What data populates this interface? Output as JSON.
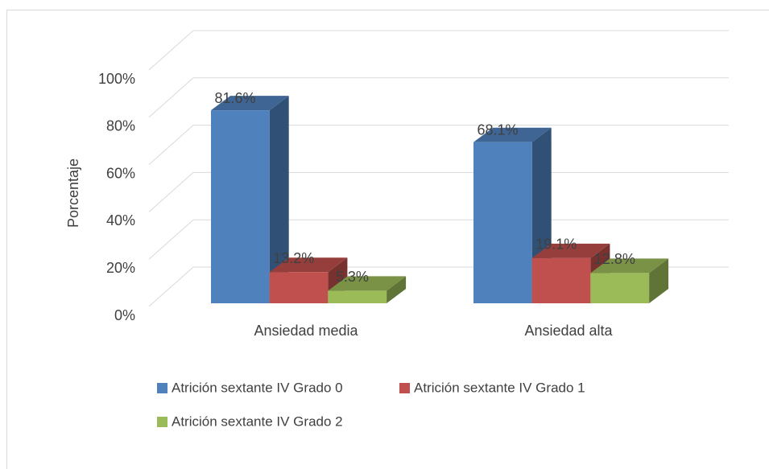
{
  "chart_data": {
    "type": "bar3d",
    "y_label": "Porcentaje",
    "categories": [
      "Ansiedad media",
      "Ansiedad alta"
    ],
    "series": [
      {
        "name": "Atrición sextante IV Grado 0",
        "color": "#4f81bd",
        "values": [
          81.6,
          68.1
        ],
        "value_labels": [
          "81.6%",
          "68.1%"
        ]
      },
      {
        "name": "Atrición sextante IV Grado 1",
        "color": "#c0504d",
        "values": [
          13.2,
          19.1
        ],
        "value_labels": [
          "13.2%",
          "19.1%"
        ]
      },
      {
        "name": "Atrición sextante IV Grado 2",
        "color": "#9bbb59",
        "values": [
          5.3,
          12.8
        ],
        "value_labels": [
          "5.3%",
          "12.8%"
        ]
      }
    ],
    "ylim": [
      0,
      100
    ],
    "yticks": [
      {
        "value": 0,
        "label": "0%"
      },
      {
        "value": 20,
        "label": "20%"
      },
      {
        "value": 40,
        "label": "40%"
      },
      {
        "value": 60,
        "label": "60%"
      },
      {
        "value": 80,
        "label": "80%"
      },
      {
        "value": 100,
        "label": "100%"
      }
    ],
    "grid": true
  }
}
